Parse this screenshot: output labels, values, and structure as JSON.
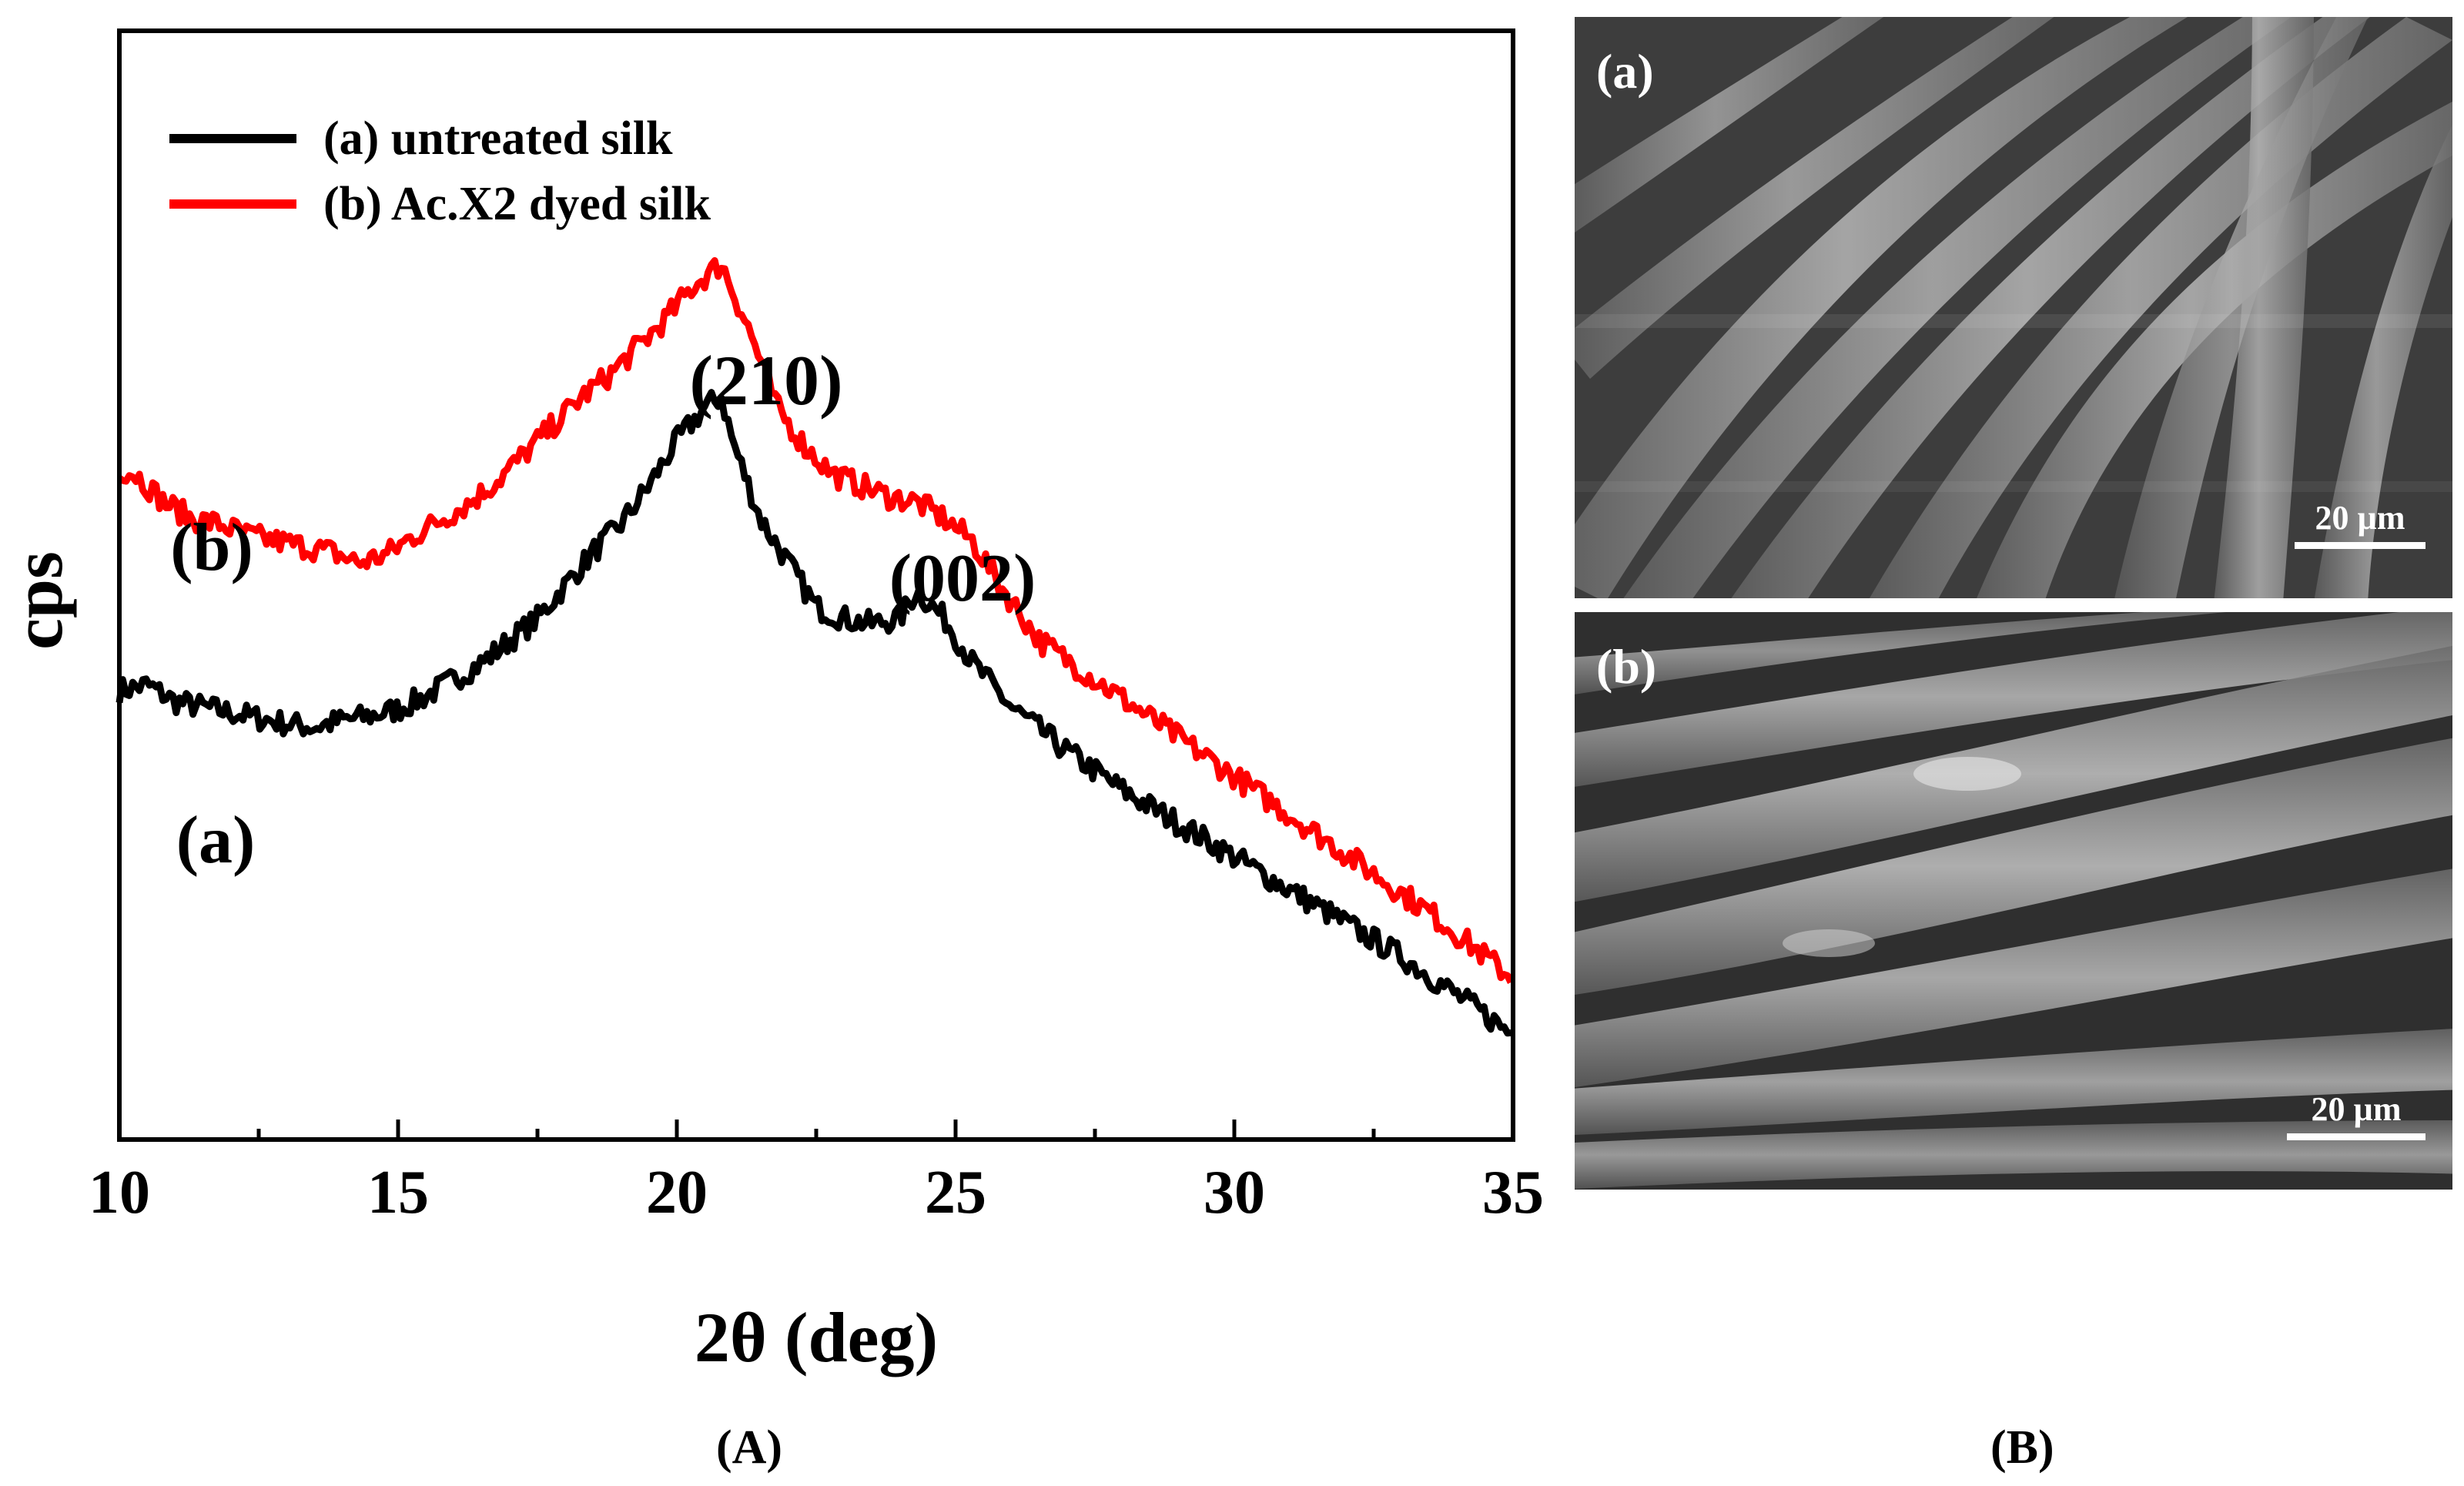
{
  "chart_data": {
    "type": "line",
    "xlabel": "2θ (deg)",
    "ylabel": "cps",
    "xlim": [
      10,
      35
    ],
    "ylim": [
      0,
      1
    ],
    "x_ticks": [
      "10",
      "15",
      "20",
      "25",
      "30",
      "35"
    ],
    "legend_position": "top-left",
    "series": [
      {
        "name": "(a) untreated silk",
        "curve_label": "(a)",
        "color": "#000000",
        "x": [
          10,
          10.5,
          11,
          11.5,
          12,
          12.5,
          13,
          13.5,
          14,
          14.5,
          15,
          15.5,
          16,
          16.5,
          17,
          17.5,
          18,
          18.5,
          19,
          19.5,
          20,
          20.5,
          20.8,
          21,
          21.5,
          22,
          22.5,
          23,
          23.5,
          24,
          24.3,
          24.8,
          25.3,
          26,
          27,
          28,
          29,
          30,
          31,
          32,
          33,
          34,
          35
        ],
        "values": [
          0.405,
          0.41,
          0.395,
          0.39,
          0.385,
          0.38,
          0.375,
          0.372,
          0.378,
          0.382,
          0.388,
          0.4,
          0.415,
          0.43,
          0.45,
          0.47,
          0.5,
          0.53,
          0.555,
          0.59,
          0.63,
          0.66,
          0.67,
          0.63,
          0.56,
          0.52,
          0.48,
          0.47,
          0.465,
          0.47,
          0.495,
          0.47,
          0.43,
          0.39,
          0.35,
          0.315,
          0.285,
          0.255,
          0.225,
          0.195,
          0.165,
          0.13,
          0.095
        ]
      },
      {
        "name": "(b) Ac.X2 dyed silk",
        "curve_label": "(b)",
        "color": "#ff0000",
        "x": [
          10,
          10.3,
          10.8,
          11.3,
          11.8,
          12.3,
          12.8,
          13.3,
          13.8,
          14.3,
          14.8,
          15.3,
          15.8,
          16.3,
          16.8,
          17.3,
          17.8,
          18.3,
          18.8,
          19.3,
          19.8,
          20.3,
          20.8,
          21.3,
          21.8,
          22.3,
          22.8,
          23.3,
          23.8,
          24.3,
          24.8,
          25.3,
          25.8,
          26.5,
          27.5,
          28.5,
          29.5,
          30.5,
          31.5,
          32.5,
          33.5,
          34.5,
          35
        ],
        "values": [
          0.605,
          0.6,
          0.575,
          0.56,
          0.555,
          0.545,
          0.54,
          0.535,
          0.53,
          0.52,
          0.528,
          0.545,
          0.56,
          0.575,
          0.595,
          0.62,
          0.645,
          0.67,
          0.69,
          0.715,
          0.74,
          0.77,
          0.79,
          0.73,
          0.66,
          0.625,
          0.6,
          0.59,
          0.58,
          0.575,
          0.56,
          0.54,
          0.5,
          0.45,
          0.415,
          0.38,
          0.345,
          0.31,
          0.275,
          0.24,
          0.205,
          0.165,
          0.145
        ]
      }
    ],
    "annotations": [
      {
        "text": "(210)",
        "x": 20.8,
        "y": 0.86
      },
      {
        "text": "(002)",
        "x": 25.3,
        "y": 0.68
      }
    ],
    "title": ""
  },
  "panels": {
    "left_label": "(A)",
    "right_label": "(B)"
  },
  "sem_images": [
    {
      "label": "(a)",
      "scale": "20 µm"
    },
    {
      "label": "(b)",
      "scale": "20 µm"
    }
  ]
}
